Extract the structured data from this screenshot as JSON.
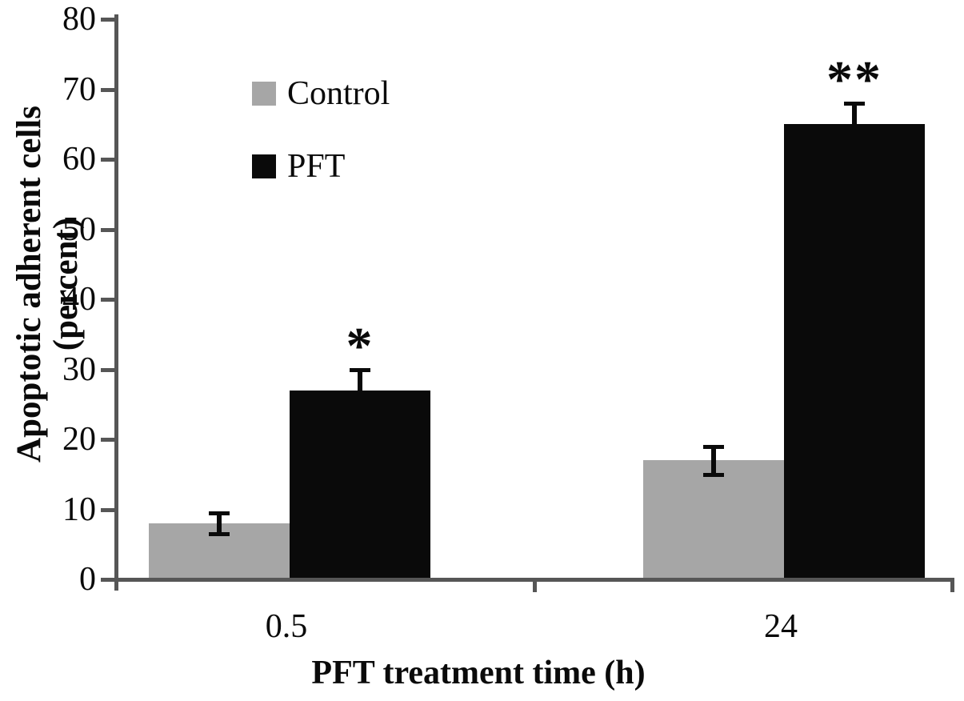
{
  "chart_data": {
    "type": "bar",
    "title": "",
    "xlabel": "PFT treatment time (h)",
    "ylabel": "Apoptotic adherent cells (percent)",
    "categories": [
      "0.5",
      "24"
    ],
    "series": [
      {
        "name": "Control",
        "color": "#a6a6a6",
        "values": [
          8,
          17
        ],
        "errors": [
          1.5,
          2
        ]
      },
      {
        "name": "PFT",
        "color": "#0a0a0a",
        "values": [
          27,
          65
        ],
        "errors": [
          3,
          3
        ]
      }
    ],
    "annotations": [
      {
        "text": "*",
        "category": "0.5",
        "series": "PFT"
      },
      {
        "text": "**",
        "category": "24",
        "series": "PFT"
      }
    ],
    "ylim": [
      0,
      80
    ],
    "yticks": [
      0,
      10,
      20,
      30,
      40,
      50,
      60,
      70,
      80
    ],
    "grid": false,
    "legend_position": "upper-left-inside",
    "error_bar_color": "#0a0a0a",
    "axis_color": "#565656",
    "background_color": "#ffffff"
  }
}
